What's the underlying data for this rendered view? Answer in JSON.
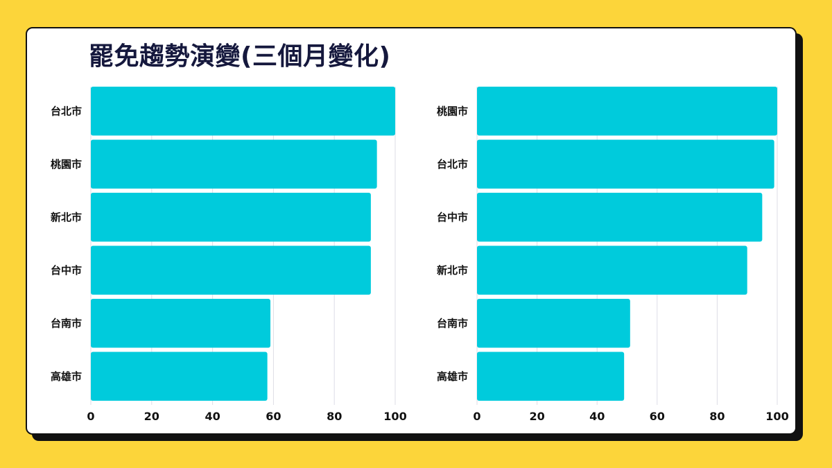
{
  "title": "罷免趨勢演變(三個月變化)",
  "colors": {
    "background": "#FCD53A",
    "bar": "#00CBDC",
    "title": "#15183D",
    "grid": "#DDDDE6"
  },
  "chart_data": [
    {
      "type": "bar",
      "orientation": "horizontal",
      "categories": [
        "台北市",
        "桃園市",
        "新北市",
        "台中市",
        "台南市",
        "高雄市"
      ],
      "values": [
        100,
        94,
        92,
        92,
        59,
        58
      ],
      "xlim": [
        0,
        100
      ],
      "xticks": [
        "0",
        "20",
        "40",
        "60",
        "80",
        "100"
      ],
      "grid": true
    },
    {
      "type": "bar",
      "orientation": "horizontal",
      "categories": [
        "桃園市",
        "台北市",
        "台中市",
        "新北市",
        "台南市",
        "高雄市"
      ],
      "values": [
        100,
        99,
        95,
        90,
        51,
        49
      ],
      "xlim": [
        0,
        100
      ],
      "xticks": [
        "0",
        "20",
        "40",
        "60",
        "80",
        "100"
      ],
      "grid": true
    }
  ]
}
